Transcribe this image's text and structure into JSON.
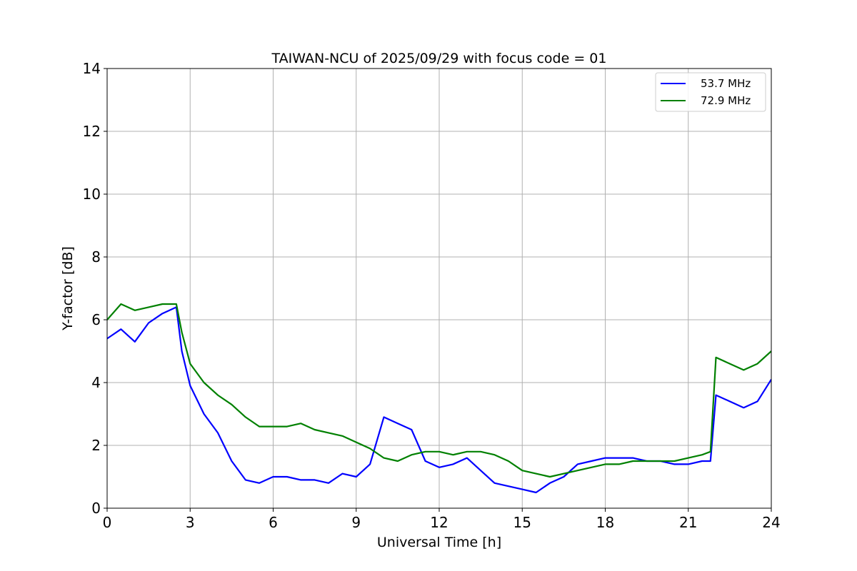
{
  "chart_data": {
    "type": "line",
    "title": "TAIWAN-NCU of 2025/09/29 with focus code = 01",
    "xlabel": "Universal Time [h]",
    "ylabel": "Y-factor [dB]",
    "xlim": [
      0,
      24
    ],
    "ylim": [
      0,
      14
    ],
    "xticks": [
      0,
      3,
      6,
      9,
      12,
      15,
      18,
      21,
      24
    ],
    "yticks": [
      0,
      2,
      4,
      6,
      8,
      10,
      12,
      14
    ],
    "grid": true,
    "legend_position": "upper right",
    "series": [
      {
        "name": "53.7 MHz",
        "color": "#0000ff",
        "x": [
          0,
          0.5,
          1.0,
          1.5,
          2.0,
          2.5,
          2.7,
          3.0,
          3.5,
          4.0,
          4.5,
          5.0,
          5.5,
          6.0,
          6.5,
          7.0,
          7.5,
          8.0,
          8.5,
          9.0,
          9.5,
          10.0,
          10.5,
          11.0,
          11.5,
          12.0,
          12.5,
          13.0,
          13.5,
          14.0,
          14.5,
          15.0,
          15.5,
          16.0,
          16.5,
          17.0,
          17.5,
          18.0,
          18.5,
          19.0,
          19.5,
          20.0,
          20.5,
          21.0,
          21.5,
          21.8,
          22.0,
          22.5,
          23.0,
          23.5,
          24.0
        ],
        "y": [
          5.4,
          5.7,
          5.3,
          5.9,
          6.2,
          6.4,
          5.0,
          3.9,
          3.0,
          2.4,
          1.5,
          0.9,
          0.8,
          1.0,
          1.0,
          0.9,
          0.9,
          0.8,
          1.1,
          1.0,
          1.4,
          2.9,
          2.7,
          2.5,
          1.5,
          1.3,
          1.4,
          1.6,
          1.2,
          0.8,
          0.7,
          0.6,
          0.5,
          0.8,
          1.0,
          1.4,
          1.5,
          1.6,
          1.6,
          1.6,
          1.5,
          1.5,
          1.4,
          1.4,
          1.5,
          1.5,
          3.6,
          3.4,
          3.2,
          3.4,
          4.1
        ]
      },
      {
        "name": "72.9 MHz",
        "color": "#008000",
        "x": [
          0,
          0.5,
          1.0,
          1.5,
          2.0,
          2.5,
          2.7,
          3.0,
          3.5,
          4.0,
          4.5,
          5.0,
          5.5,
          6.0,
          6.5,
          7.0,
          7.5,
          8.0,
          8.5,
          9.0,
          9.5,
          10.0,
          10.5,
          11.0,
          11.5,
          12.0,
          12.5,
          13.0,
          13.5,
          14.0,
          14.5,
          15.0,
          15.5,
          16.0,
          16.5,
          17.0,
          17.5,
          18.0,
          18.5,
          19.0,
          19.5,
          20.0,
          20.5,
          21.0,
          21.5,
          21.8,
          22.0,
          22.5,
          23.0,
          23.5,
          24.0
        ],
        "y": [
          6.0,
          6.5,
          6.3,
          6.4,
          6.5,
          6.5,
          5.6,
          4.6,
          4.0,
          3.6,
          3.3,
          2.9,
          2.6,
          2.6,
          2.6,
          2.7,
          2.5,
          2.4,
          2.3,
          2.1,
          1.9,
          1.6,
          1.5,
          1.7,
          1.8,
          1.8,
          1.7,
          1.8,
          1.8,
          1.7,
          1.5,
          1.2,
          1.1,
          1.0,
          1.1,
          1.2,
          1.3,
          1.4,
          1.4,
          1.5,
          1.5,
          1.5,
          1.5,
          1.6,
          1.7,
          1.8,
          4.8,
          4.6,
          4.4,
          4.6,
          5.0
        ]
      }
    ]
  }
}
